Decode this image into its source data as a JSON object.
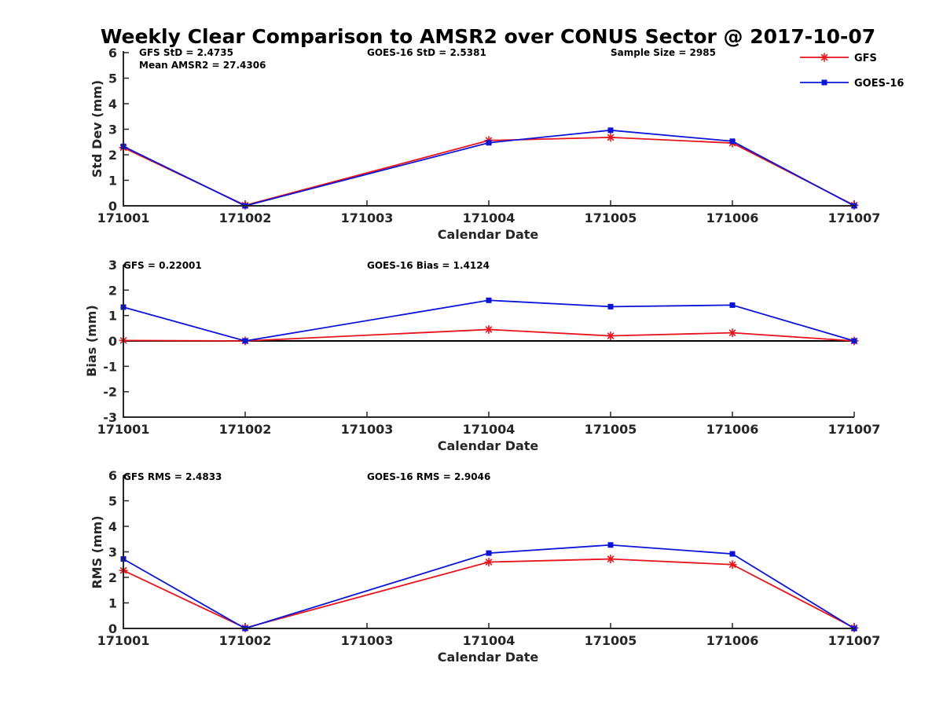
{
  "figure_title": "Weekly Clear Comparison to AMSR2 over CONUS Sector @ 2017-10-07",
  "legend": [
    {
      "label": "GFS",
      "color": "#e8141c",
      "marker": "star"
    },
    {
      "label": "GOES-16",
      "color": "#0a14d8",
      "marker": "square"
    }
  ],
  "chart_data": [
    {
      "type": "line",
      "title": "",
      "xlabel": "Calendar Date",
      "ylabel": "Std Dev (mm)",
      "categories": [
        "171001",
        "171002",
        "171003",
        "171004",
        "171005",
        "171006",
        "171007"
      ],
      "ylim": [
        0,
        6
      ],
      "yticks": [
        "0",
        "1",
        "2",
        "3",
        "4",
        "5",
        "6"
      ],
      "zero_line": false,
      "annotations": {
        "gfs": "GFS StD = 2.4735",
        "mean": "Mean AMSR2 = 27.4306",
        "goes": "GOES-16 StD = 2.5381",
        "sample": "Sample Size = 2985"
      },
      "series": [
        {
          "name": "GFS",
          "x": [
            "171001",
            "171002",
            "171004",
            "171005",
            "171006",
            "171007"
          ],
          "values": [
            2.28,
            0.02,
            2.56,
            2.68,
            2.46,
            0.02
          ]
        },
        {
          "name": "GOES-16",
          "x": [
            "171001",
            "171002",
            "171004",
            "171005",
            "171006",
            "171007"
          ],
          "values": [
            2.33,
            0.0,
            2.47,
            2.96,
            2.53,
            0.0
          ]
        }
      ]
    },
    {
      "type": "line",
      "title": "",
      "xlabel": "Calendar Date",
      "ylabel": "Bias (mm)",
      "categories": [
        "171001",
        "171002",
        "171003",
        "171004",
        "171005",
        "171006",
        "171007"
      ],
      "ylim": [
        -3,
        3
      ],
      "yticks": [
        "-3",
        "-2",
        "-1",
        "0",
        "1",
        "2",
        "3"
      ],
      "zero_line": true,
      "annotations": {
        "gfs": "GFS = 0.22001",
        "goes": "GOES-16 Bias  = 1.4124"
      },
      "series": [
        {
          "name": "GFS",
          "x": [
            "171001",
            "171002",
            "171004",
            "171005",
            "171006",
            "171007"
          ],
          "values": [
            0.02,
            0.0,
            0.45,
            0.2,
            0.32,
            0.0
          ]
        },
        {
          "name": "GOES-16",
          "x": [
            "171001",
            "171002",
            "171004",
            "171005",
            "171006",
            "171007"
          ],
          "values": [
            1.33,
            0.0,
            1.6,
            1.35,
            1.41,
            0.0
          ]
        }
      ]
    },
    {
      "type": "line",
      "title": "",
      "xlabel": "Calendar Date",
      "ylabel": "RMS (mm)",
      "categories": [
        "171001",
        "171002",
        "171003",
        "171004",
        "171005",
        "171006",
        "171007"
      ],
      "ylim": [
        0,
        6
      ],
      "yticks": [
        "0",
        "1",
        "2",
        "3",
        "4",
        "5",
        "6"
      ],
      "zero_line": false,
      "annotations": {
        "gfs": "GFS RMS = 2.4833",
        "goes": "GOES-16 RMS = 2.9046"
      },
      "series": [
        {
          "name": "GFS",
          "x": [
            "171001",
            "171002",
            "171004",
            "171005",
            "171006",
            "171007"
          ],
          "values": [
            2.27,
            0.02,
            2.6,
            2.72,
            2.5,
            0.02
          ]
        },
        {
          "name": "GOES-16",
          "x": [
            "171001",
            "171002",
            "171004",
            "171005",
            "171006",
            "171007"
          ],
          "values": [
            2.72,
            0.0,
            2.95,
            3.27,
            2.92,
            0.0
          ]
        }
      ]
    }
  ]
}
